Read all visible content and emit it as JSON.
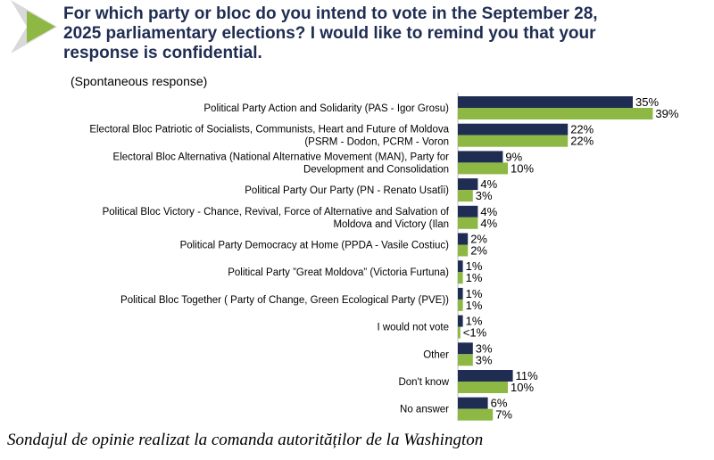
{
  "header": {
    "title": "For which party or bloc do you intend to vote in the September 28,\n2025 parliamentary elections? I would like to remind you that your\nresponse is confidential.",
    "subtitle": "(Spontaneous response)"
  },
  "caption": "Sondajul de opinie realizat la comanda autorităților de la Washington",
  "colors": {
    "series_1": "#1f2d52",
    "series_2": "#8db843",
    "chevron": "#8db843",
    "chevron_shadow": "#d9d9d9"
  },
  "chart_data": {
    "type": "bar",
    "orientation": "horizontal",
    "categories": [
      "Political Party Action and Solidarity (PAS - Igor Grosu)",
      "Electoral Bloc Patriotic of Socialists, Communists, Heart and Future of Moldova\n(PSRM - Dodon, PCRM - Voron",
      "Electoral Bloc Alternativa (National Alternative Movement (MAN), Party for\nDevelopment and Consolidation",
      "Political Party Our Party (PN - Renato Usatîi)",
      "Political Bloc Victory - Chance, Revival, Force of Alternative and Salvation of\nMoldova and Victory (Ilan",
      "Political Party Democracy at Home (PPDA - Vasile Costiuc)",
      "Political Party ”Great Moldova” (Victoria Furtuna)",
      "Political Bloc Together ( Party of Change, Green Ecological Party (PVE))",
      "I would not vote",
      "Other",
      "Don't know",
      "No answer"
    ],
    "series": [
      {
        "values": [
          35,
          22,
          9,
          4,
          4,
          2,
          1,
          1,
          1,
          3,
          11,
          6
        ],
        "labels": [
          "35%",
          "22%",
          "9%",
          "4%",
          "4%",
          "2%",
          "1%",
          "1%",
          "1%",
          "3%",
          "11%",
          "6%"
        ]
      },
      {
        "values": [
          39,
          22,
          10,
          3,
          4,
          2,
          1,
          1,
          0.5,
          3,
          10,
          7
        ],
        "labels": [
          "39%",
          "22%",
          "10%",
          "3%",
          "4%",
          "2%",
          "1%",
          "1%",
          "<1%",
          "3%",
          "10%",
          "7%"
        ]
      }
    ],
    "xlim": [
      0,
      45
    ],
    "grid": false,
    "legend": "none"
  }
}
